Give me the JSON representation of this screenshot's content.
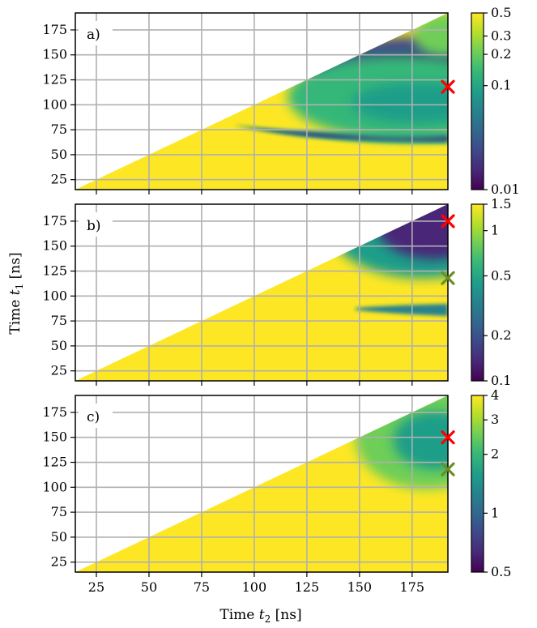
{
  "chart_data": [
    {
      "type": "heatmap",
      "panel_label": "a)",
      "xlabel": "",
      "ylabel": "",
      "x_range": [
        15,
        192
      ],
      "y_range": [
        15,
        192
      ],
      "x_ticks": [
        25,
        50,
        75,
        100,
        125,
        150,
        175
      ],
      "y_ticks": [
        25,
        50,
        75,
        100,
        125,
        150,
        175
      ],
      "grid": true,
      "colormap": "viridis",
      "color_scale": "log",
      "color_range": [
        0.01,
        0.5
      ],
      "colorbar_ticks": [
        0.5,
        0.3,
        0.2,
        0.1,
        0.01
      ],
      "colorbar_tick_labels": [
        "0.5",
        "0.3",
        "0.2",
        "0.1",
        "0.01"
      ],
      "region": "t1 <= t2 (upper-left triangle blank)",
      "features": [
        {
          "kind": "dark-band",
          "t1_center": 68,
          "t2_start": 90,
          "t2_end": 192,
          "min_value": 0.01
        },
        {
          "kind": "dark-region",
          "t1_range": [
            110,
            150
          ],
          "t2_range": [
            145,
            192
          ],
          "min_value": 0.01
        },
        {
          "kind": "mid-region",
          "t1_range": [
            85,
            130
          ],
          "t2_range": [
            125,
            192
          ],
          "value": 0.1
        }
      ],
      "markers": [
        {
          "t2": 192,
          "t1": 118,
          "color": "#ff0000",
          "symbol": "x"
        }
      ]
    },
    {
      "type": "heatmap",
      "panel_label": "b)",
      "xlabel": "",
      "ylabel": "Time t1 [ns]",
      "x_range": [
        15,
        192
      ],
      "y_range": [
        15,
        192
      ],
      "x_ticks": [
        25,
        50,
        75,
        100,
        125,
        150,
        175
      ],
      "y_ticks": [
        25,
        50,
        75,
        100,
        125,
        150,
        175
      ],
      "grid": true,
      "colormap": "viridis",
      "color_scale": "log",
      "color_range": [
        0.1,
        1.5
      ],
      "colorbar_ticks": [
        1.5,
        1,
        0.5,
        0.2,
        0.1
      ],
      "colorbar_tick_labels": [
        "1.5",
        "1",
        "0.5",
        "0.2",
        "0.1"
      ],
      "region": "t1 <= t2 (upper-left triangle blank)",
      "features": [
        {
          "kind": "dark-band",
          "t1_center": 86,
          "t2_start": 148,
          "t2_end": 192,
          "min_value": 0.3
        },
        {
          "kind": "dark-region",
          "t1_range": [
            135,
            192
          ],
          "t2_range": [
            150,
            192
          ],
          "min_value": 0.1
        }
      ],
      "markers": [
        {
          "t2": 192,
          "t1": 175,
          "color": "#ff0000",
          "symbol": "x"
        },
        {
          "t2": 192,
          "t1": 118,
          "color": "#6b8e23",
          "symbol": "x"
        }
      ]
    },
    {
      "type": "heatmap",
      "panel_label": "c)",
      "xlabel": "Time t2 [ns]",
      "ylabel": "",
      "x_range": [
        15,
        192
      ],
      "y_range": [
        15,
        192
      ],
      "x_ticks": [
        25,
        50,
        75,
        100,
        125,
        150,
        175
      ],
      "y_ticks": [
        25,
        50,
        75,
        100,
        125,
        150,
        175
      ],
      "grid": true,
      "colormap": "viridis",
      "color_scale": "log",
      "color_range": [
        0.5,
        4
      ],
      "colorbar_ticks": [
        4,
        3,
        2,
        1,
        0.5
      ],
      "colorbar_tick_labels": [
        "4",
        "3",
        "2",
        "1",
        "0.5"
      ],
      "region": "t1 <= t2 (upper-left triangle blank)",
      "features": [
        {
          "kind": "teal-region",
          "t1_range": [
            125,
            185
          ],
          "t2_range": [
            158,
            192
          ],
          "min_value": 2
        }
      ],
      "markers": [
        {
          "t2": 192,
          "t1": 150,
          "color": "#ff0000",
          "symbol": "x"
        },
        {
          "t2": 192,
          "t1": 118,
          "color": "#6b8e23",
          "symbol": "x"
        }
      ]
    }
  ],
  "labels": {
    "ylabel_main": "Time",
    "ylabel_var": "t",
    "ylabel_sub": "1",
    "ylabel_unit": "[ns]",
    "xlabel_main": "Time",
    "xlabel_var": "t",
    "xlabel_sub": "2",
    "xlabel_unit": "[ns]"
  }
}
